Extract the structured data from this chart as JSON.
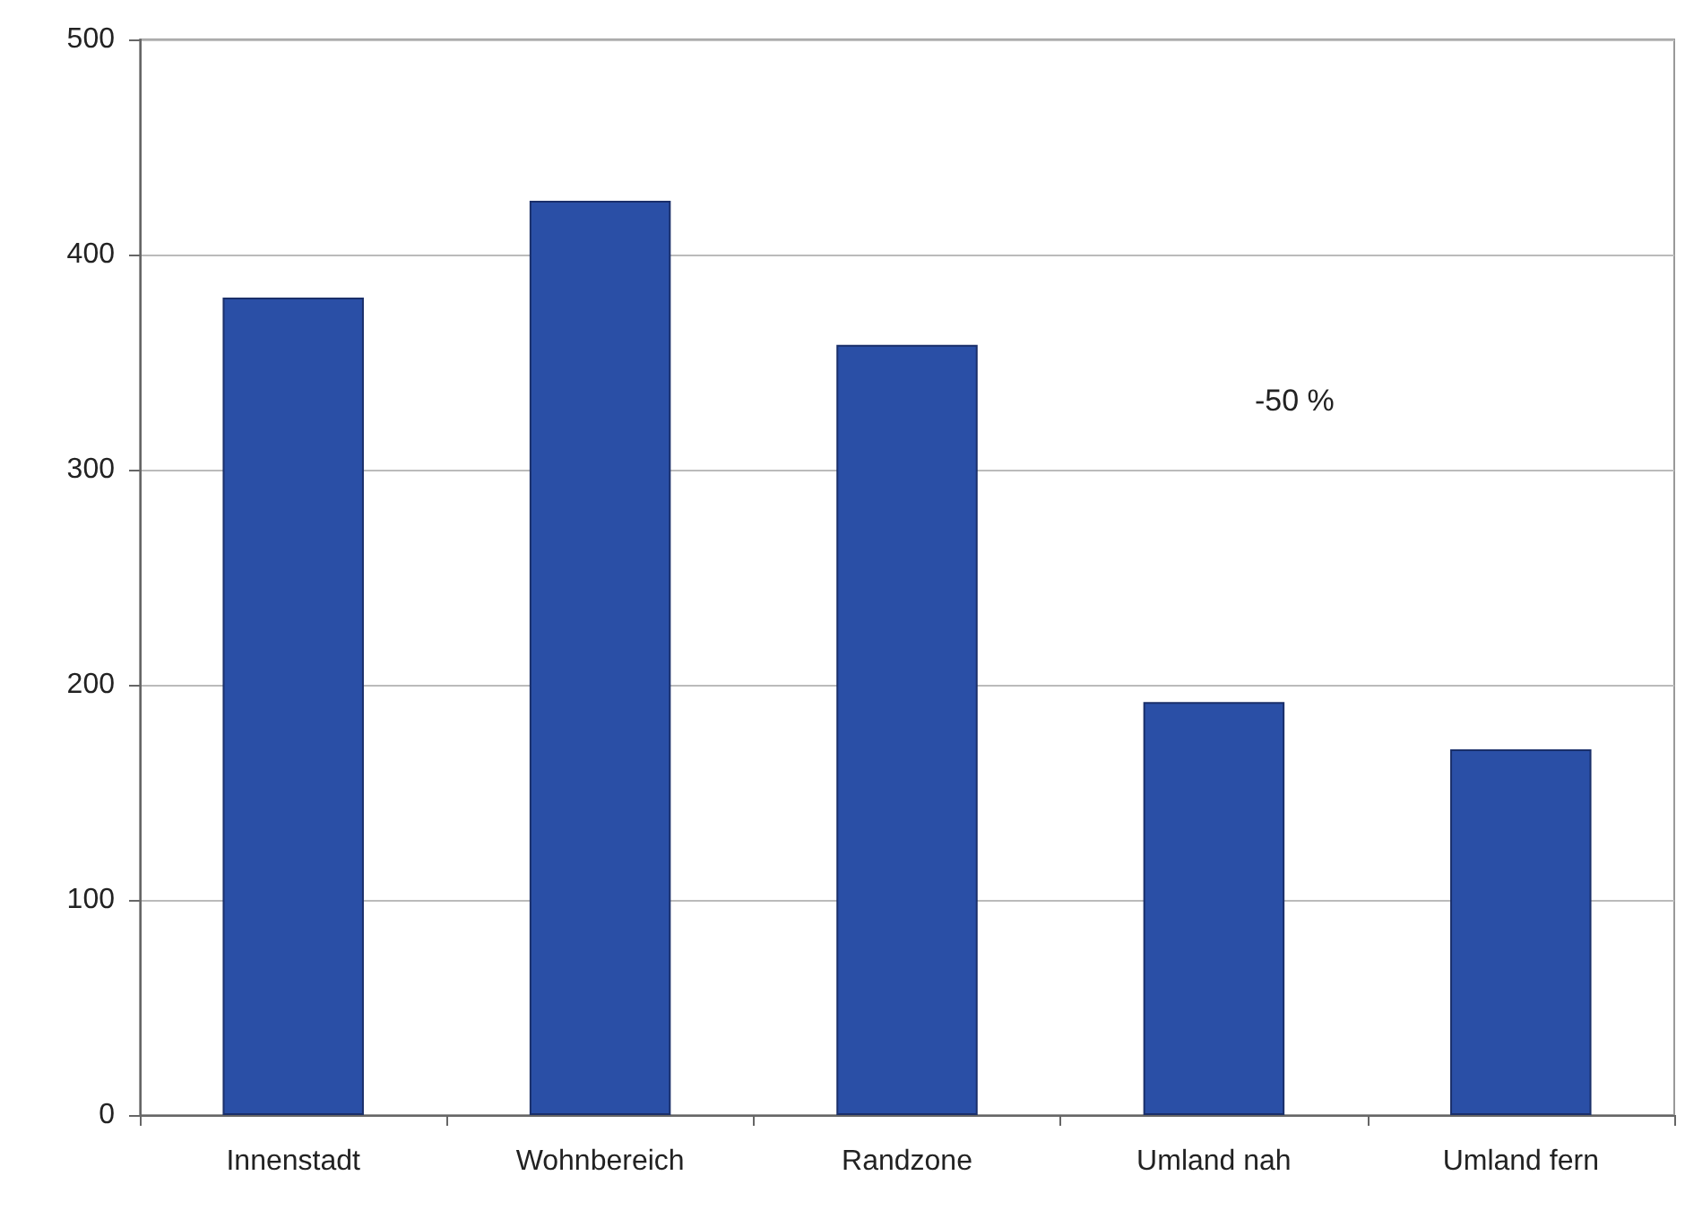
{
  "chart_data": {
    "type": "bar",
    "categories": [
      "Innenstadt",
      "Wohnbereich",
      "Randzone",
      "Umland nah",
      "Umland fern"
    ],
    "values": [
      380,
      425,
      358,
      192,
      170
    ],
    "color": "#2a4fa6",
    "ylim": [
      0,
      500
    ],
    "yticks": [
      0,
      100,
      200,
      300,
      400,
      500
    ],
    "grid": "y",
    "annotations": [
      "-50 %"
    ]
  }
}
